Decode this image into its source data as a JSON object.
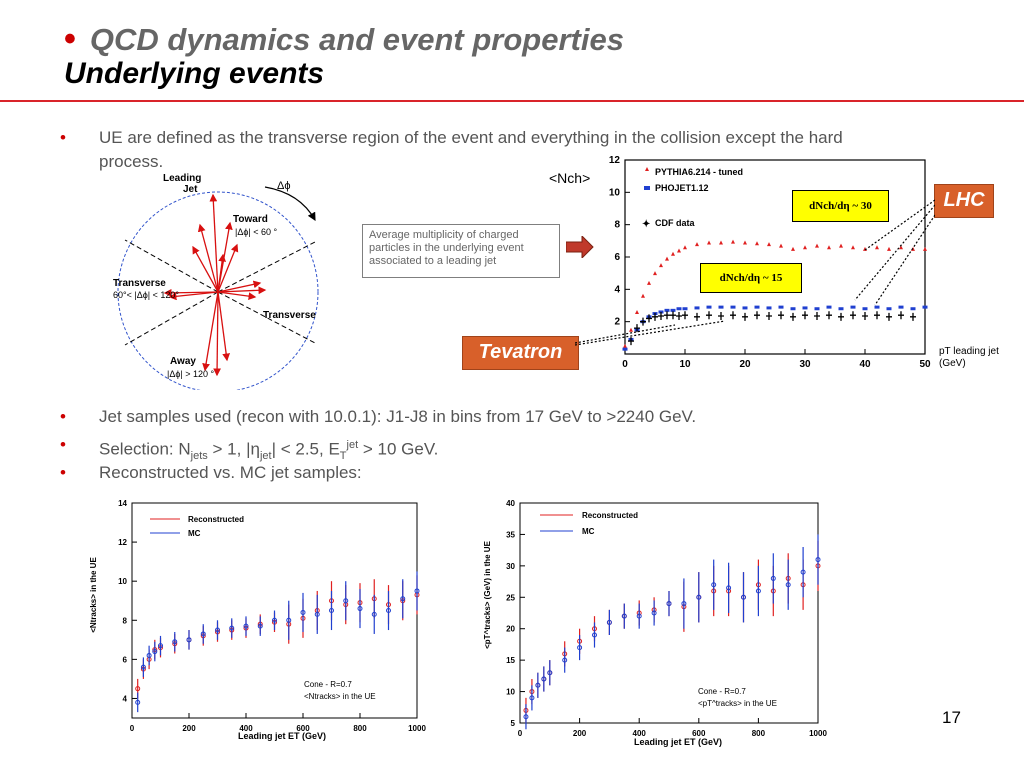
{
  "title": {
    "bullet": "•",
    "line1": "QCD dynamics and event properties",
    "line2": "Underlying events"
  },
  "bullets": {
    "b1": "UE are defined as the transverse region of the event and everything in the collision except the hard process.",
    "b2": "Jet samples used (recon with 10.0.1): J1-J8 in bins from 17 GeV to >2240 GeV.",
    "b3_prefix": "Selection: N",
    "b3_sub1": "jets",
    "b3_mid1": " > 1, |η",
    "b3_sub2": "jet",
    "b3_mid2": "| < 2.5, E",
    "b3_sub3": "T",
    "b3_sup3": "jet",
    "b3_suffix": " > 10 GeV.",
    "b4": "Reconstructed vs. MC jet samples:"
  },
  "diagram": {
    "leading": "Leading",
    "jet": "Jet",
    "dphi": "Δϕ",
    "toward": "Toward",
    "toward_cut": "|Δϕ| < 60 °",
    "transverse": "Transverse",
    "trans_cut": "60°< |Δϕ| < 120°",
    "transverse2": "Transverse",
    "away": "Away",
    "away_cut": "|Δϕ| > 120 °"
  },
  "note": "Average multiplicity of charged particles in the underlying event associated to a leading jet",
  "nch_label": "<Nch>",
  "tags": {
    "lhc": "LHC",
    "tevatron": "Tevatron"
  },
  "boxes": {
    "b30": "dNch/dη ~ 30",
    "b15": "dNch/dη ~ 15"
  },
  "pt_label": "pT leading jet (GeV)",
  "page_number": "17",
  "colors": {
    "accent": "#d9242a",
    "orange": "#d8602a",
    "red": "#e02020",
    "blue": "#2040d0",
    "yellow": "#ffff00"
  },
  "chart_data": [
    {
      "type": "scatter",
      "legend": [
        "PYTHIA6.214 - tuned",
        "PHOJET1.12",
        "CDF data"
      ],
      "xlim": [
        0,
        50
      ],
      "ylim": [
        0,
        12
      ],
      "xticks": [
        0,
        10,
        20,
        30,
        40,
        50
      ],
      "yticks": [
        2,
        4,
        6,
        8,
        10,
        12
      ],
      "series": [
        {
          "name": "PYTHIA6.214 - tuned",
          "x": [
            0,
            1,
            2,
            3,
            4,
            5,
            6,
            7,
            8,
            9,
            10,
            12,
            14,
            16,
            18,
            20,
            22,
            24,
            26,
            28,
            30,
            32,
            34,
            36,
            38,
            40,
            42,
            44,
            46,
            48,
            50
          ],
          "y": [
            0.5,
            1.5,
            2.6,
            3.6,
            4.4,
            5.0,
            5.5,
            5.9,
            6.2,
            6.4,
            6.6,
            6.8,
            6.9,
            6.9,
            6.95,
            6.9,
            6.85,
            6.8,
            6.7,
            6.5,
            6.6,
            6.7,
            6.6,
            6.7,
            6.6,
            6.5,
            6.6,
            6.5,
            6.6,
            6.5,
            6.5
          ]
        },
        {
          "name": "PHOJET1.12",
          "x": [
            0,
            1,
            2,
            3,
            4,
            5,
            6,
            7,
            8,
            9,
            10,
            12,
            14,
            16,
            18,
            20,
            22,
            24,
            26,
            28,
            30,
            32,
            34,
            36,
            38,
            40,
            42,
            44,
            46,
            48,
            50
          ],
          "y": [
            0.3,
            0.9,
            1.5,
            2.0,
            2.3,
            2.5,
            2.6,
            2.7,
            2.7,
            2.8,
            2.8,
            2.85,
            2.9,
            2.9,
            2.9,
            2.85,
            2.9,
            2.85,
            2.9,
            2.8,
            2.85,
            2.8,
            2.9,
            2.8,
            2.9,
            2.8,
            2.9,
            2.8,
            2.9,
            2.8,
            2.9
          ]
        },
        {
          "name": "CDF data",
          "x": [
            1,
            2,
            3,
            4,
            5,
            6,
            7,
            8,
            9,
            10,
            12,
            14,
            16,
            18,
            20,
            22,
            24,
            26,
            28,
            30,
            32,
            34,
            36,
            38,
            40,
            42,
            44,
            46,
            48
          ],
          "y": [
            0.8,
            1.6,
            2.0,
            2.2,
            2.3,
            2.35,
            2.4,
            2.4,
            2.35,
            2.4,
            2.3,
            2.4,
            2.35,
            2.4,
            2.3,
            2.4,
            2.35,
            2.4,
            2.3,
            2.4,
            2.35,
            2.4,
            2.3,
            2.4,
            2.35,
            2.4,
            2.3,
            2.4,
            2.3
          ]
        }
      ]
    },
    {
      "type": "scatter",
      "ylabel": "<Ntracks> in the UE",
      "xlabel": "Leading jet ET (GeV)",
      "legend": [
        "Reconstructed",
        "MC"
      ],
      "annotation": [
        "Cone - R=0.7",
        "<Ntracks> in the UE"
      ],
      "xlim": [
        0,
        1000
      ],
      "ylim": [
        3,
        14
      ],
      "xticks": [
        0,
        200,
        400,
        600,
        800,
        1000
      ],
      "yticks": [
        4,
        6,
        8,
        10,
        12,
        14
      ],
      "series": [
        {
          "name": "Reconstructed",
          "x": [
            20,
            40,
            60,
            80,
            100,
            150,
            200,
            250,
            300,
            350,
            400,
            450,
            500,
            550,
            600,
            650,
            700,
            750,
            800,
            850,
            900,
            950,
            1000
          ],
          "y": [
            4.5,
            5.5,
            6.0,
            6.5,
            6.6,
            6.8,
            7.0,
            7.2,
            7.4,
            7.5,
            7.6,
            7.8,
            7.9,
            7.8,
            8.1,
            8.5,
            9.0,
            8.8,
            8.9,
            9.1,
            8.8,
            9.0,
            9.3
          ]
        },
        {
          "name": "MC",
          "x": [
            20,
            40,
            60,
            80,
            100,
            150,
            200,
            250,
            300,
            350,
            400,
            450,
            500,
            550,
            600,
            650,
            700,
            750,
            800,
            850,
            900,
            950,
            1000
          ],
          "y": [
            3.8,
            5.6,
            6.2,
            6.4,
            6.7,
            6.9,
            7.0,
            7.3,
            7.5,
            7.6,
            7.7,
            7.7,
            8.0,
            8.0,
            8.4,
            8.3,
            8.5,
            9.0,
            8.6,
            8.3,
            8.5,
            9.1,
            9.5
          ]
        }
      ]
    },
    {
      "type": "scatter",
      "ylabel": "<pT^tracks> (GeV) in the UE",
      "xlabel": "Leading jet ET (GeV)",
      "legend": [
        "Reconstructed",
        "MC"
      ],
      "annotation": [
        "Cone - R=0.7",
        "<pT^tracks> in the UE"
      ],
      "xlim": [
        0,
        1000
      ],
      "ylim": [
        5,
        40
      ],
      "xticks": [
        0,
        200,
        400,
        600,
        800,
        1000
      ],
      "yticks": [
        5,
        10,
        15,
        20,
        25,
        30,
        35,
        40
      ],
      "series": [
        {
          "name": "Reconstructed",
          "x": [
            20,
            40,
            60,
            80,
            100,
            150,
            200,
            250,
            300,
            350,
            400,
            450,
            500,
            550,
            600,
            650,
            700,
            750,
            800,
            850,
            900,
            950,
            1000
          ],
          "y": [
            7,
            10,
            11,
            12,
            13,
            16,
            18,
            20,
            21,
            22,
            22.5,
            23,
            24,
            23.5,
            25,
            26,
            26,
            25,
            27,
            26,
            28,
            27,
            30
          ]
        },
        {
          "name": "MC",
          "x": [
            20,
            40,
            60,
            80,
            100,
            150,
            200,
            250,
            300,
            350,
            400,
            450,
            500,
            550,
            600,
            650,
            700,
            750,
            800,
            850,
            900,
            950,
            1000
          ],
          "y": [
            6,
            9,
            11,
            12,
            13,
            15,
            17,
            19,
            21,
            22,
            22,
            22.5,
            24,
            24,
            25,
            27,
            26.5,
            25,
            26,
            28,
            27,
            29,
            31
          ]
        }
      ]
    }
  ]
}
